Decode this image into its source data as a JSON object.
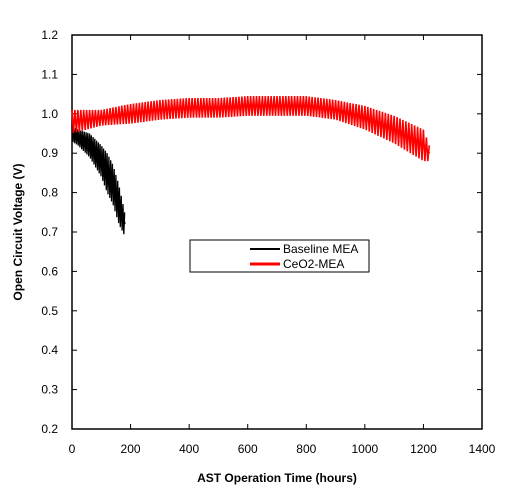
{
  "chart_data": {
    "type": "line",
    "title": "",
    "xlabel": "AST Operation Time (hours)",
    "ylabel": "Open Circuit Voltage (V)",
    "xlim": [
      0,
      1400
    ],
    "ylim": [
      0.2,
      1.2
    ],
    "xticks": [
      0,
      200,
      400,
      600,
      800,
      1000,
      1200,
      1400
    ],
    "yticks": [
      0.2,
      0.3,
      0.4,
      0.5,
      0.6,
      0.7,
      0.8,
      0.9,
      1.0,
      1.1,
      1.2
    ],
    "xtick_labels": [
      "0",
      "200",
      "400",
      "600",
      "800",
      "1000",
      "1200",
      "1400"
    ],
    "ytick_labels": [
      "0.2",
      "0.3",
      "0.4",
      "0.5",
      "0.6",
      "0.7",
      "0.8",
      "0.9",
      "1.0",
      "1.1",
      "1.2"
    ],
    "grid": false,
    "legend_position": "center-right",
    "series": [
      {
        "name": "Baseline MEA",
        "color": "#000000",
        "x": [
          0,
          20,
          40,
          60,
          80,
          100,
          120,
          140,
          160,
          180
        ],
        "y": [
          0.95,
          0.94,
          0.93,
          0.92,
          0.9,
          0.88,
          0.85,
          0.82,
          0.77,
          0.72
        ],
        "spread": [
          0.02,
          0.02,
          0.025,
          0.03,
          0.035,
          0.04,
          0.05,
          0.05,
          0.05,
          0.03
        ]
      },
      {
        "name": "CeO2-MEA",
        "color": "#ff0000",
        "x": [
          0,
          100,
          200,
          300,
          400,
          500,
          600,
          700,
          800,
          900,
          1000,
          1100,
          1200,
          1220
        ],
        "y": [
          0.98,
          0.99,
          1.0,
          1.01,
          1.015,
          1.015,
          1.02,
          1.02,
          1.02,
          1.01,
          0.99,
          0.96,
          0.92,
          0.9
        ],
        "spread": [
          0.03,
          0.02,
          0.025,
          0.025,
          0.025,
          0.025,
          0.025,
          0.025,
          0.025,
          0.025,
          0.03,
          0.035,
          0.04,
          0.02
        ]
      }
    ]
  }
}
